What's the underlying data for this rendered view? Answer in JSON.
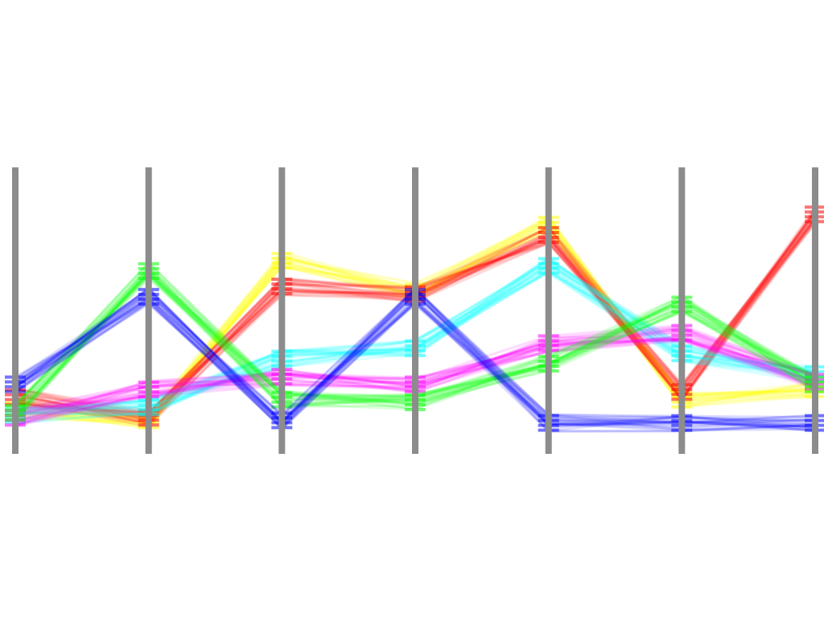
{
  "chart_data": {
    "type": "parallel-coordinates",
    "dimensions": 7,
    "ylim": [
      0,
      1
    ],
    "grid": false,
    "legend": "none",
    "axis_color": "#8c8c8c",
    "series": [
      {
        "color": "#ffff00",
        "values": [
          0.12,
          0.08,
          0.7,
          0.58,
          0.84,
          0.16,
          0.2
        ]
      },
      {
        "color": "#ff0000",
        "values": [
          0.17,
          0.09,
          0.6,
          0.57,
          0.8,
          0.19,
          0.88
        ]
      },
      {
        "color": "#00ffff",
        "values": [
          0.1,
          0.13,
          0.32,
          0.36,
          0.68,
          0.34,
          0.26
        ]
      },
      {
        "color": "#ff00ff",
        "values": [
          0.09,
          0.2,
          0.25,
          0.22,
          0.38,
          0.42,
          0.23
        ]
      },
      {
        "color": "#00ff00",
        "values": [
          0.11,
          0.66,
          0.16,
          0.15,
          0.3,
          0.53,
          0.22
        ]
      },
      {
        "color": "#0000ff",
        "values": [
          0.22,
          0.56,
          0.08,
          0.56,
          0.07,
          0.07,
          0.07
        ]
      }
    ]
  }
}
